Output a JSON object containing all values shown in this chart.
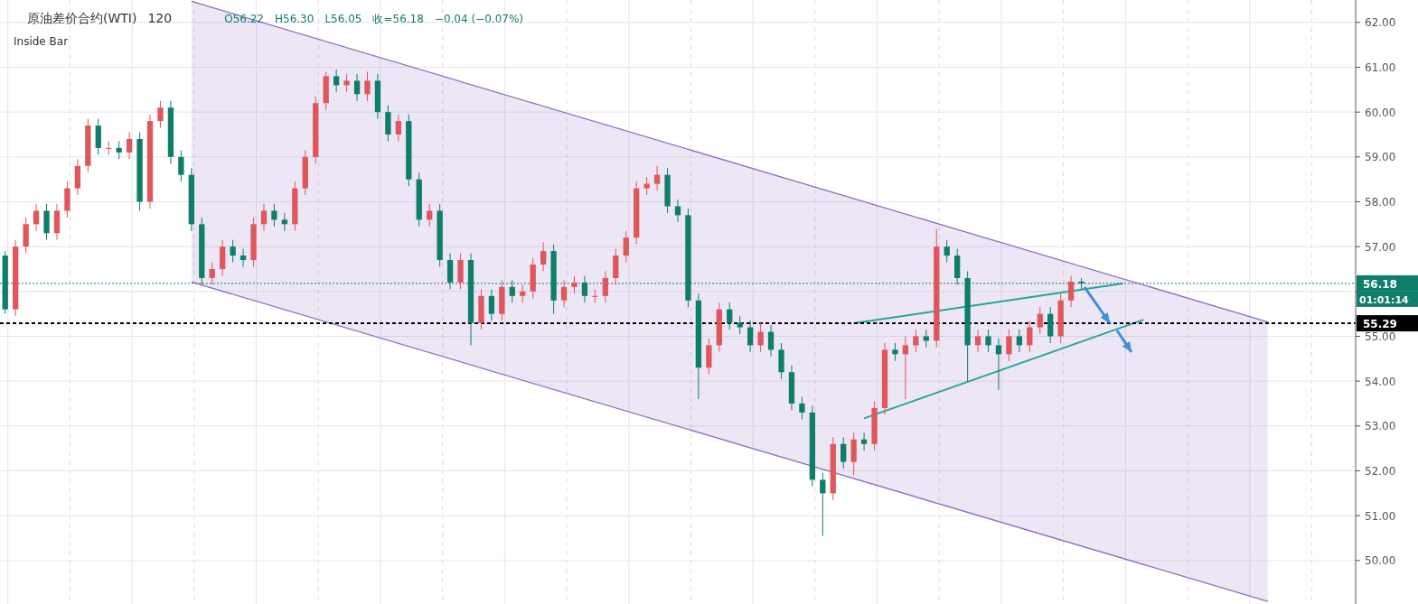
{
  "chart_data": {
    "type": "candlestick",
    "title": "原油差价合约(WTI)",
    "subtitle": "120",
    "annotations": [
      "O56.22",
      "H56.30",
      "L56.05",
      "收=56.18",
      "−0.04 (−0.07%)",
      "Inside Bar",
      "01:01:14"
    ],
    "categories": [
      null,
      null,
      null,
      null,
      null,
      null,
      null,
      null,
      null,
      null,
      null,
      null,
      null,
      null,
      null,
      null,
      null,
      null,
      null,
      null,
      null,
      null,
      null,
      null,
      null,
      null,
      null,
      null,
      null,
      null,
      null,
      null,
      null,
      null,
      null,
      null,
      null,
      null,
      null,
      null,
      null,
      null,
      null,
      null,
      null,
      null,
      null,
      null,
      null,
      null,
      null,
      null,
      null,
      null,
      null,
      null,
      null,
      null,
      null,
      null,
      null,
      null,
      null,
      null,
      null,
      null,
      null,
      null,
      null,
      null,
      null,
      null,
      null,
      null,
      null,
      null,
      null,
      null,
      null,
      null,
      null,
      null,
      null,
      null,
      null,
      null,
      null,
      null,
      null,
      null,
      null,
      null,
      null,
      null,
      null,
      null,
      null,
      null,
      null,
      null,
      null,
      null,
      null,
      null,
      null,
      null,
      null,
      null,
      null,
      null,
      null,
      null,
      null,
      null,
      null,
      null,
      null,
      null,
      null,
      null,
      null,
      null,
      null,
      null,
      null,
      null,
      null,
      null,
      null,
      null,
      null
    ],
    "ohlc": [
      [
        56.8,
        56.9,
        55.5,
        55.6
      ],
      [
        55.6,
        57.15,
        55.45,
        57.0
      ],
      [
        57.0,
        57.65,
        56.85,
        57.5
      ],
      [
        57.5,
        57.95,
        57.35,
        57.8
      ],
      [
        57.8,
        57.95,
        57.15,
        57.3
      ],
      [
        57.3,
        57.95,
        57.15,
        57.8
      ],
      [
        57.8,
        58.45,
        57.65,
        58.3
      ],
      [
        58.3,
        58.95,
        58.15,
        58.8
      ],
      [
        58.8,
        59.85,
        58.65,
        59.7
      ],
      [
        59.7,
        59.85,
        59.05,
        59.2
      ],
      [
        59.2,
        59.35,
        59.05,
        59.2
      ],
      [
        59.2,
        59.35,
        58.95,
        59.1
      ],
      [
        59.1,
        59.55,
        58.95,
        59.4
      ],
      [
        59.4,
        59.55,
        57.8,
        58.0
      ],
      [
        58.0,
        59.95,
        57.85,
        59.8
      ],
      [
        59.8,
        60.25,
        59.65,
        60.1
      ],
      [
        60.1,
        60.25,
        58.85,
        59.0
      ],
      [
        59.0,
        59.15,
        58.45,
        58.6
      ],
      [
        58.6,
        58.75,
        57.35,
        57.5
      ],
      [
        57.5,
        57.65,
        56.15,
        56.3
      ],
      [
        56.3,
        56.65,
        56.15,
        56.5
      ],
      [
        56.5,
        57.15,
        56.35,
        57.0
      ],
      [
        57.0,
        57.15,
        56.65,
        56.8
      ],
      [
        56.8,
        56.95,
        56.55,
        56.7
      ],
      [
        56.7,
        57.65,
        56.55,
        57.5
      ],
      [
        57.5,
        57.95,
        57.35,
        57.8
      ],
      [
        57.8,
        57.95,
        57.45,
        57.6
      ],
      [
        57.6,
        57.75,
        57.35,
        57.5
      ],
      [
        57.5,
        58.45,
        57.35,
        58.3
      ],
      [
        58.3,
        59.15,
        58.15,
        59.0
      ],
      [
        59.0,
        60.35,
        58.85,
        60.2
      ],
      [
        60.2,
        60.9,
        60.05,
        60.8
      ],
      [
        60.8,
        60.95,
        60.45,
        60.6
      ],
      [
        60.6,
        60.85,
        60.45,
        60.7
      ],
      [
        60.7,
        60.85,
        60.25,
        60.4
      ],
      [
        60.4,
        60.9,
        60.25,
        60.7
      ],
      [
        60.7,
        60.85,
        59.85,
        60.0
      ],
      [
        60.0,
        60.15,
        59.35,
        59.5
      ],
      [
        59.5,
        59.95,
        59.35,
        59.8
      ],
      [
        59.8,
        59.95,
        58.35,
        58.5
      ],
      [
        58.5,
        58.65,
        57.45,
        57.6
      ],
      [
        57.6,
        57.95,
        57.45,
        57.8
      ],
      [
        57.8,
        57.95,
        56.55,
        56.7
      ],
      [
        56.7,
        56.85,
        56.05,
        56.2
      ],
      [
        56.2,
        56.85,
        56.05,
        56.7
      ],
      [
        56.7,
        56.85,
        54.8,
        55.3
      ],
      [
        55.3,
        56.05,
        55.15,
        55.9
      ],
      [
        55.9,
        56.05,
        55.35,
        55.5
      ],
      [
        55.5,
        56.25,
        55.35,
        56.1
      ],
      [
        56.1,
        56.25,
        55.75,
        55.9
      ],
      [
        55.9,
        56.15,
        55.75,
        56.0
      ],
      [
        56.0,
        56.75,
        55.85,
        56.6
      ],
      [
        56.6,
        57.1,
        56.45,
        56.9
      ],
      [
        56.9,
        57.05,
        55.5,
        55.8
      ],
      [
        55.8,
        56.25,
        55.65,
        56.1
      ],
      [
        56.1,
        56.35,
        55.95,
        56.2
      ],
      [
        56.2,
        56.35,
        55.75,
        55.9
      ],
      [
        55.9,
        56.05,
        55.75,
        55.9
      ],
      [
        55.9,
        56.45,
        55.75,
        56.3
      ],
      [
        56.3,
        56.95,
        56.15,
        56.8
      ],
      [
        56.8,
        57.35,
        56.65,
        57.2
      ],
      [
        57.2,
        58.45,
        57.05,
        58.3
      ],
      [
        58.3,
        58.55,
        58.15,
        58.4
      ],
      [
        58.4,
        58.8,
        58.25,
        58.6
      ],
      [
        58.6,
        58.75,
        57.75,
        57.9
      ],
      [
        57.9,
        58.05,
        57.55,
        57.7
      ],
      [
        57.7,
        57.85,
        55.65,
        55.8
      ],
      [
        55.8,
        55.95,
        53.6,
        54.3
      ],
      [
        54.3,
        54.95,
        54.15,
        54.8
      ],
      [
        54.8,
        55.75,
        54.65,
        55.6
      ],
      [
        55.6,
        55.75,
        55.15,
        55.3
      ],
      [
        55.3,
        55.45,
        55.05,
        55.2
      ],
      [
        55.2,
        55.35,
        54.65,
        54.8
      ],
      [
        54.8,
        55.3,
        54.65,
        55.1
      ],
      [
        55.1,
        55.25,
        54.55,
        54.7
      ],
      [
        54.7,
        54.85,
        54.05,
        54.2
      ],
      [
        54.2,
        54.35,
        53.35,
        53.5
      ],
      [
        53.5,
        53.65,
        53.15,
        53.3
      ],
      [
        53.3,
        53.45,
        51.65,
        51.8
      ],
      [
        51.8,
        51.95,
        50.55,
        51.5
      ],
      [
        51.5,
        52.75,
        51.35,
        52.6
      ],
      [
        52.6,
        52.75,
        52.05,
        52.2
      ],
      [
        52.2,
        52.85,
        51.9,
        52.7
      ],
      [
        52.7,
        52.85,
        52.45,
        52.6
      ],
      [
        52.6,
        53.55,
        52.45,
        53.4
      ],
      [
        53.4,
        54.85,
        53.25,
        54.7
      ],
      [
        54.7,
        54.85,
        54.45,
        54.6
      ],
      [
        54.6,
        55.0,
        53.6,
        54.8
      ],
      [
        54.8,
        55.15,
        54.65,
        55.0
      ],
      [
        55.0,
        55.15,
        54.75,
        54.9
      ],
      [
        54.9,
        57.4,
        54.75,
        57.0
      ],
      [
        57.0,
        57.15,
        56.65,
        56.8
      ],
      [
        56.8,
        56.95,
        56.15,
        56.3
      ],
      [
        56.3,
        56.45,
        54.0,
        54.8
      ],
      [
        54.8,
        55.15,
        54.65,
        55.0
      ],
      [
        55.0,
        55.15,
        54.65,
        54.8
      ],
      [
        54.8,
        54.95,
        53.8,
        54.6
      ],
      [
        54.6,
        55.15,
        54.45,
        55.0
      ],
      [
        55.0,
        55.15,
        54.65,
        54.8
      ],
      [
        54.8,
        55.35,
        54.65,
        55.2
      ],
      [
        55.2,
        55.65,
        55.05,
        55.5
      ],
      [
        55.5,
        55.65,
        54.85,
        55.0
      ],
      [
        55.0,
        55.95,
        54.85,
        55.8
      ],
      [
        55.8,
        56.35,
        55.65,
        56.22
      ],
      [
        56.22,
        56.3,
        56.05,
        56.18
      ],
      null,
      null,
      null,
      null,
      null,
      null,
      null,
      null,
      null,
      null,
      null,
      null,
      null,
      null,
      null,
      null,
      null,
      null,
      null,
      null,
      null,
      null,
      null,
      null,
      null,
      null
    ],
    "colors": [
      "#0e7e6b",
      "#e0575b",
      "#e0575b",
      "#e0575b",
      "#0e7e6b",
      "#e0575b",
      "#e0575b",
      "#e0575b",
      "#e0575b",
      "#0e7e6b",
      "#e0575b",
      "#0e7e6b",
      "#e0575b",
      "#0e7e6b",
      "#e0575b",
      "#e0575b",
      "#0e7e6b",
      "#0e7e6b",
      "#0e7e6b",
      "#0e7e6b",
      "#e0575b",
      "#e0575b",
      "#0e7e6b",
      "#0e7e6b",
      "#e0575b",
      "#e0575b",
      "#0e7e6b",
      "#0e7e6b",
      "#e0575b",
      "#e0575b",
      "#e0575b",
      "#e0575b",
      "#0e7e6b",
      "#e0575b",
      "#0e7e6b",
      "#e0575b",
      "#0e7e6b",
      "#0e7e6b",
      "#e0575b",
      "#0e7e6b",
      "#0e7e6b",
      "#e0575b",
      "#0e7e6b",
      "#0e7e6b",
      "#e0575b",
      "#0e7e6b",
      "#e0575b",
      "#0e7e6b",
      "#e0575b",
      "#0e7e6b",
      "#e0575b",
      "#e0575b",
      "#e0575b",
      "#0e7e6b",
      "#e0575b",
      "#e0575b",
      "#0e7e6b",
      "#e0575b",
      "#e0575b",
      "#e0575b",
      "#e0575b",
      "#e0575b",
      "#e0575b",
      "#e0575b",
      "#0e7e6b",
      "#0e7e6b",
      "#0e7e6b",
      "#0e7e6b",
      "#e0575b",
      "#e0575b",
      "#0e7e6b",
      "#0e7e6b",
      "#0e7e6b",
      "#e0575b",
      "#0e7e6b",
      "#0e7e6b",
      "#0e7e6b",
      "#0e7e6b",
      "#0e7e6b",
      "#0e7e6b",
      "#e0575b",
      "#0e7e6b",
      "#e0575b",
      "#0e7e6b",
      "#e0575b",
      "#e0575b",
      "#0e7e6b",
      "#e0575b",
      "#e0575b",
      "#0e7e6b",
      "#e0575b",
      "#0e7e6b",
      "#0e7e6b",
      "#0e7e6b",
      "#e0575b",
      "#0e7e6b",
      "#0e7e6b",
      "#e0575b",
      "#0e7e6b",
      "#e0575b",
      "#e0575b",
      "#0e7e6b",
      "#e0575b",
      "#e0575b",
      "#0e7e6b",
      null,
      null,
      null,
      null,
      null,
      null,
      null,
      null,
      null,
      null,
      null,
      null,
      null,
      null,
      null,
      null,
      null,
      null,
      null,
      null,
      null,
      null,
      null,
      null,
      null,
      null
    ],
    "series": [
      {
        "type": "line",
        "color": "#8e6cc4",
        "values": [
          null,
          null,
          null,
          null,
          null,
          null,
          null,
          null,
          null,
          null,
          null,
          null,
          null,
          null,
          null,
          null,
          null,
          null,
          62.47,
          null,
          null,
          null,
          null,
          null,
          null,
          null,
          null,
          null,
          null,
          null,
          null,
          null,
          null,
          null,
          null,
          null,
          null,
          null,
          null,
          null,
          null,
          null,
          null,
          null,
          null,
          null,
          null,
          null,
          null,
          null,
          null,
          null,
          null,
          null,
          null,
          null,
          null,
          null,
          null,
          null,
          null,
          null,
          null,
          null,
          null,
          null,
          null,
          null,
          null,
          null,
          null,
          null,
          null,
          null,
          null,
          null,
          null,
          null,
          null,
          null,
          null,
          null,
          null,
          null,
          null,
          null,
          null,
          null,
          null,
          null,
          null,
          null,
          null,
          null,
          null,
          null,
          null,
          null,
          null,
          null,
          null,
          null,
          null,
          null,
          null,
          null,
          null,
          null,
          null,
          null,
          null,
          null,
          null,
          null,
          null,
          null,
          null,
          null,
          null,
          null,
          null,
          null,
          55.32,
          null,
          null,
          null,
          null,
          null,
          null,
          null,
          null
        ],
        "lower": [
          null,
          null,
          null,
          null,
          null,
          null,
          null,
          null,
          null,
          null,
          null,
          null,
          null,
          null,
          null,
          null,
          null,
          null,
          56.21,
          null,
          null,
          null,
          null,
          null,
          null,
          null,
          null,
          null,
          null,
          null,
          null,
          null,
          null,
          null,
          null,
          null,
          null,
          null,
          null,
          null,
          null,
          null,
          null,
          null,
          null,
          null,
          null,
          null,
          null,
          null,
          null,
          null,
          null,
          null,
          null,
          null,
          null,
          null,
          null,
          null,
          null,
          null,
          null,
          null,
          null,
          null,
          null,
          null,
          null,
          null,
          null,
          null,
          null,
          null,
          null,
          null,
          null,
          null,
          null,
          null,
          null,
          null,
          null,
          null,
          null,
          null,
          null,
          null,
          null,
          null,
          null,
          null,
          null,
          null,
          null,
          null,
          null,
          null,
          null,
          null,
          null,
          null,
          null,
          null,
          null,
          null,
          null,
          null,
          null,
          null,
          null,
          null,
          null,
          null,
          null,
          null,
          null,
          null,
          null,
          null,
          null,
          null,
          49.09,
          null,
          null,
          null,
          null,
          null,
          null,
          null,
          null
        ],
        "upper": [
          null,
          null,
          null,
          null,
          null,
          null,
          null,
          null,
          null,
          null,
          null,
          null,
          null,
          null,
          null,
          null,
          null,
          null,
          62.47,
          null,
          null,
          null,
          null,
          null,
          null,
          null,
          null,
          null,
          null,
          null,
          null,
          null,
          null,
          null,
          null,
          null,
          null,
          null,
          null,
          null,
          null,
          null,
          null,
          null,
          null,
          null,
          null,
          null,
          null,
          null,
          null,
          null,
          null,
          null,
          null,
          null,
          null,
          null,
          null,
          null,
          null,
          null,
          null,
          null,
          null,
          null,
          null,
          null,
          null,
          null,
          null,
          null,
          null,
          null,
          null,
          null,
          null,
          null,
          null,
          null,
          null,
          null,
          null,
          null,
          null,
          null,
          null,
          null,
          null,
          null,
          null,
          null,
          null,
          null,
          null,
          null,
          null,
          null,
          null,
          null,
          null,
          null,
          null,
          null,
          null,
          null,
          null,
          null,
          null,
          null,
          null,
          null,
          null,
          null,
          null,
          null,
          null,
          null,
          null,
          null,
          null,
          null,
          55.32,
          null,
          null,
          null,
          null,
          null,
          null,
          null,
          null
        ]
      },
      {
        "type": "line",
        "color": "#8e6cc4",
        "values": [
          null,
          null,
          null,
          null,
          null,
          null,
          null,
          null,
          null,
          null,
          null,
          null,
          null,
          null,
          null,
          null,
          null,
          null,
          56.21,
          null,
          null,
          null,
          null,
          null,
          null,
          null,
          null,
          null,
          null,
          null,
          null,
          null,
          null,
          null,
          null,
          null,
          null,
          null,
          null,
          null,
          null,
          null,
          null,
          null,
          null,
          null,
          null,
          null,
          null,
          null,
          null,
          null,
          null,
          null,
          null,
          null,
          null,
          null,
          null,
          null,
          null,
          null,
          null,
          null,
          null,
          null,
          null,
          null,
          null,
          null,
          null,
          null,
          null,
          null,
          null,
          null,
          null,
          null,
          null,
          null,
          null,
          null,
          null,
          null,
          null,
          null,
          null,
          null,
          null,
          null,
          null,
          null,
          null,
          null,
          null,
          null,
          null,
          null,
          null,
          null,
          null,
          null,
          null,
          null,
          null,
          null,
          null,
          null,
          null,
          null,
          null,
          null,
          null,
          null,
          null,
          null,
          null,
          null,
          null,
          null,
          null,
          null,
          49.09,
          null,
          null,
          null,
          null,
          null,
          null,
          null,
          null
        ]
      },
      {
        "type": "line",
        "color": "#26a69a",
        "values": [
          null,
          null,
          null,
          null,
          null,
          null,
          null,
          null,
          null,
          null,
          null,
          null,
          null,
          null,
          null,
          null,
          null,
          null,
          null,
          null,
          null,
          null,
          null,
          null,
          null,
          null,
          null,
          null,
          null,
          null,
          null,
          null,
          null,
          null,
          null,
          null,
          null,
          null,
          null,
          null,
          null,
          null,
          null,
          null,
          null,
          null,
          null,
          null,
          null,
          null,
          null,
          null,
          null,
          null,
          null,
          null,
          null,
          null,
          null,
          null,
          null,
          null,
          null,
          null,
          null,
          null,
          null,
          null,
          null,
          null,
          null,
          null,
          null,
          null,
          null,
          null,
          null,
          null,
          null,
          null,
          null,
          null,
          55.29,
          null,
          null,
          null,
          null,
          null,
          null,
          null,
          null,
          null,
          null,
          null,
          null,
          null,
          null,
          null,
          null,
          null,
          null,
          null,
          null,
          null,
          null,
          null,
          null,
          null,
          56.18,
          null,
          null,
          null,
          null,
          null,
          null,
          null,
          null,
          null,
          null,
          null,
          null,
          null,
          null,
          null,
          null,
          null,
          null,
          null,
          null,
          null,
          null
        ]
      },
      {
        "type": "line",
        "color": "#26a69a",
        "values": [
          null,
          null,
          null,
          null,
          null,
          null,
          null,
          null,
          null,
          null,
          null,
          null,
          null,
          null,
          null,
          null,
          null,
          null,
          null,
          null,
          null,
          null,
          null,
          null,
          null,
          null,
          null,
          null,
          null,
          null,
          null,
          null,
          null,
          null,
          null,
          null,
          null,
          null,
          null,
          null,
          null,
          null,
          null,
          null,
          null,
          null,
          null,
          null,
          null,
          null,
          null,
          null,
          null,
          null,
          null,
          null,
          null,
          null,
          null,
          null,
          null,
          null,
          null,
          null,
          null,
          null,
          null,
          null,
          null,
          null,
          null,
          null,
          null,
          null,
          null,
          null,
          null,
          null,
          null,
          null,
          null,
          null,
          null,
          53.17,
          null,
          null,
          null,
          null,
          null,
          null,
          null,
          null,
          null,
          null,
          null,
          null,
          null,
          null,
          null,
          null,
          null,
          null,
          null,
          null,
          null,
          null,
          null,
          null,
          null,
          null,
          55.37,
          null,
          null,
          null,
          null,
          null,
          null,
          null,
          null,
          null,
          null,
          null,
          null,
          null,
          null,
          null,
          null,
          null,
          null,
          null,
          null
        ]
      }
    ],
    "ref_lines": [
      {
        "axis": "y",
        "value": 56.18,
        "label": "56.18",
        "color": "#0e7e6b",
        "line_style": "dotted"
      },
      {
        "axis": "y",
        "value": 55.29,
        "label": "55.29",
        "color": "#000000",
        "line_style": "dashed"
      }
    ],
    "ylim": [
      49.03,
      62.5
    ],
    "yticks": [
      {
        "value": 50,
        "label": "50.00"
      },
      {
        "value": 51,
        "label": "51.00"
      },
      {
        "value": 52,
        "label": "52.00"
      },
      {
        "value": 53,
        "label": "53.00"
      },
      {
        "value": 54,
        "label": "54.00"
      },
      {
        "value": 55,
        "label": "55.00"
      },
      {
        "value": 56,
        "label": null
      },
      {
        "value": 57,
        "label": "57.00"
      },
      {
        "value": 58,
        "label": "58.00"
      },
      {
        "value": 59,
        "label": "59.00"
      },
      {
        "value": 60,
        "label": "60.00"
      },
      {
        "value": 61,
        "label": "61.00"
      },
      {
        "value": 62,
        "label": "62.00"
      }
    ],
    "grid": true
  }
}
